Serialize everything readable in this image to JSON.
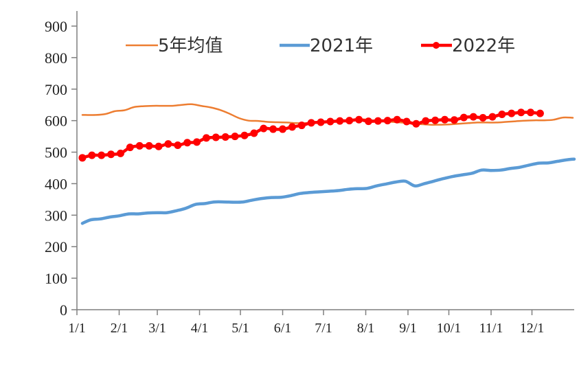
{
  "chart_data": {
    "type": "line",
    "ylim": [
      0,
      900
    ],
    "yticks": [
      0,
      100,
      200,
      300,
      400,
      500,
      600,
      700,
      800,
      900
    ],
    "x_domain_days": [
      0,
      365
    ],
    "xtick_labels": [
      "1/1",
      "2/1",
      "3/1",
      "4/1",
      "5/1",
      "6/1",
      "7/1",
      "8/1",
      "9/1",
      "10/1",
      "11/1",
      "12/1"
    ],
    "xtick_days": [
      0,
      31,
      59,
      90,
      120,
      151,
      181,
      212,
      243,
      273,
      304,
      334
    ],
    "grid": false,
    "legend_position": "top",
    "series": [
      {
        "name": "5年均值",
        "color": "#ED7D31",
        "marker": false,
        "x": [
          4,
          14,
          21,
          28,
          35,
          42,
          49,
          56,
          63,
          70,
          77,
          84,
          91,
          98,
          105,
          112,
          119,
          126,
          133,
          140,
          147,
          154,
          161,
          168,
          175,
          182,
          189,
          196,
          203,
          210,
          217,
          224,
          231,
          238,
          245,
          252,
          259,
          266,
          273,
          280,
          287,
          294,
          301,
          308,
          315,
          322,
          329,
          336,
          343,
          350,
          357,
          364
        ],
        "y": [
          618,
          618,
          621,
          630,
          633,
          643,
          646,
          647,
          647,
          647,
          650,
          652,
          647,
          642,
          634,
          622,
          608,
          600,
          599,
          596,
          595,
          594,
          592,
          592,
          595,
          597,
          598,
          600,
          602,
          604,
          601,
          598,
          596,
          594,
          591,
          589,
          587,
          587,
          588,
          590,
          592,
          594,
          594,
          594,
          596,
          598,
          600,
          601,
          601,
          603,
          610,
          609
        ]
      },
      {
        "name": "2021年",
        "color": "#5B9BD5",
        "marker": false,
        "x": [
          4,
          10,
          17,
          24,
          31,
          38,
          45,
          52,
          59,
          66,
          73,
          80,
          87,
          94,
          101,
          108,
          115,
          122,
          129,
          136,
          143,
          150,
          157,
          164,
          171,
          178,
          185,
          192,
          199,
          206,
          213,
          220,
          227,
          234,
          241,
          248,
          255,
          262,
          269,
          276,
          283,
          290,
          297,
          304,
          311,
          318,
          325,
          332,
          339,
          346,
          353,
          360,
          365
        ],
        "y": [
          274,
          285,
          288,
          294,
          298,
          304,
          304,
          307,
          308,
          308,
          314,
          322,
          334,
          337,
          342,
          342,
          341,
          342,
          348,
          353,
          356,
          357,
          362,
          369,
          372,
          374,
          376,
          378,
          382,
          384,
          385,
          393,
          399,
          405,
          408,
          393,
          400,
          408,
          416,
          423,
          428,
          433,
          443,
          442,
          443,
          448,
          452,
          459,
          465,
          466,
          471,
          476,
          478
        ]
      },
      {
        "name": "2022年",
        "color": "#FF0000",
        "marker": true,
        "x": [
          4,
          11,
          18,
          25,
          32,
          39,
          46,
          53,
          60,
          67,
          74,
          81,
          88,
          95,
          102,
          109,
          116,
          123,
          130,
          137,
          144,
          151,
          158,
          165,
          172,
          179,
          186,
          193,
          200,
          207,
          214,
          221,
          228,
          235,
          242,
          249,
          256,
          263,
          270,
          277,
          284,
          291,
          298,
          305,
          312,
          319,
          326,
          333,
          340
        ],
        "y": [
          482,
          490,
          490,
          493,
          496,
          515,
          520,
          520,
          518,
          526,
          522,
          530,
          532,
          545,
          547,
          548,
          550,
          553,
          560,
          575,
          573,
          573,
          580,
          585,
          593,
          595,
          597,
          599,
          600,
          603,
          598,
          599,
          600,
          603,
          597,
          590,
          599,
          601,
          603,
          602,
          610,
          612,
          609,
          612,
          620,
          623,
          626,
          626,
          623
        ]
      }
    ]
  }
}
